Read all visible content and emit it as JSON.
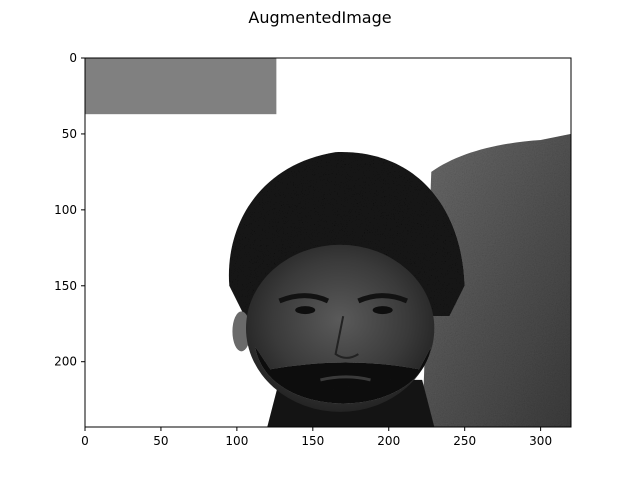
{
  "figure": {
    "title": "AugmentedImage"
  },
  "chart_data": {
    "type": "image",
    "title": "AugmentedImage",
    "image_width": 320,
    "image_height": 243,
    "colormap": "gray",
    "x_ticks": [
      0,
      50,
      100,
      150,
      200,
      250,
      300
    ],
    "y_ticks": [
      0,
      50,
      100,
      150,
      200
    ],
    "xlim": [
      0,
      320
    ],
    "ylim": [
      243,
      0
    ],
    "content": {
      "erased_patch": {
        "x0": 0,
        "x1": 126,
        "y0": 0,
        "y1": 37,
        "gray_level": 128
      },
      "background": "white",
      "subject": "grayscale portrait of a bearded man with dark hair",
      "wall_texture": "textured gray wall on right side"
    },
    "colors": {
      "axis": "#000000",
      "background": "#ffffff",
      "patch": "#808080",
      "hair": "#151515",
      "skin": "#3e3e3e",
      "wall": "#5a5a5a"
    }
  }
}
